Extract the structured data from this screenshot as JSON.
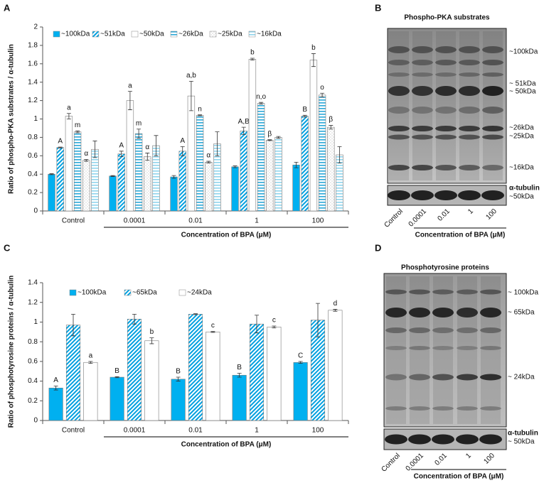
{
  "chart_data": [
    {
      "type": "bar",
      "panel_label": "A",
      "ylabel": "Ratio of phospho-PKA substrates / α-tubulin",
      "xlabel": "Concentration of BPA (μM)",
      "categories": [
        "Control",
        "0.0001",
        "0.01",
        "1",
        "100"
      ],
      "ylim": [
        0,
        2
      ],
      "yticks": [
        0,
        0.2,
        0.4,
        0.6,
        0.8,
        1,
        1.2,
        1.4,
        1.6,
        1.8,
        2
      ],
      "series": [
        {
          "name": "~100kDa",
          "color": "#00b0f0",
          "pattern": "solid",
          "values": [
            0.4,
            0.38,
            0.37,
            0.48,
            0.5
          ],
          "errors": [
            0.005,
            0.005,
            0.015,
            0.01,
            0.03
          ],
          "annotations": [
            null,
            null,
            null,
            null,
            null
          ]
        },
        {
          "name": "~51kDa",
          "color": "#00a0e0",
          "pattern": "diagonal",
          "values": [
            0.69,
            0.62,
            0.65,
            0.87,
            1.03
          ],
          "errors": [
            0.005,
            0.03,
            0.05,
            0.04,
            0.01
          ],
          "annotations": [
            "A",
            "A",
            "A",
            "A,B",
            "B"
          ]
        },
        {
          "name": "~50kDa",
          "color": "#ffffff",
          "pattern": "solid",
          "values": [
            1.03,
            1.2,
            1.25,
            1.65,
            1.64
          ],
          "errors": [
            0.03,
            0.1,
            0.16,
            0.01,
            0.07
          ],
          "annotations": [
            "a",
            "a",
            "a,b",
            "b",
            "b"
          ]
        },
        {
          "name": "~26kDa",
          "color": "#2aa8d8",
          "pattern": "horizontal",
          "values": [
            0.86,
            0.84,
            1.04,
            1.17,
            1.26
          ],
          "errors": [
            0.01,
            0.05,
            0.005,
            0.01,
            0.02
          ],
          "annotations": [
            "m",
            "m",
            "n",
            "n,o",
            "o"
          ]
        },
        {
          "name": "~25kDa",
          "color": "#ffffff",
          "pattern": "dotted",
          "values": [
            0.55,
            0.59,
            0.53,
            0.77,
            0.91
          ],
          "errors": [
            0.01,
            0.04,
            0.01,
            0.005,
            0.02
          ],
          "annotations": [
            "α",
            "α",
            "α",
            "β",
            "β"
          ]
        },
        {
          "name": "~16kDa",
          "color": "#8fd4ec",
          "pattern": "horizontal",
          "values": [
            0.67,
            0.71,
            0.73,
            0.8,
            0.61
          ],
          "errors": [
            0.09,
            0.11,
            0.13,
            0.01,
            0.09
          ],
          "annotations": [
            null,
            null,
            null,
            null,
            null
          ]
        }
      ]
    },
    {
      "type": "bar",
      "panel_label": "C",
      "ylabel": "Ratio of phosphotyrosine proteins / α-tubulin",
      "xlabel": "Concentration of BPA (μM)",
      "categories": [
        "Control",
        "0.0001",
        "0.01",
        "1",
        "100"
      ],
      "ylim": [
        0,
        1.4
      ],
      "yticks": [
        0,
        0.2,
        0.4,
        0.6,
        0.8,
        1,
        1.2,
        1.4
      ],
      "series": [
        {
          "name": "~100kDa",
          "color": "#00b0f0",
          "pattern": "solid",
          "values": [
            0.33,
            0.44,
            0.42,
            0.46,
            0.59
          ],
          "errors": [
            0.02,
            0.005,
            0.02,
            0.02,
            0.01
          ],
          "annotations": [
            "A",
            "B",
            "B",
            "B",
            "C"
          ]
        },
        {
          "name": "~65kDa",
          "color": "#00a0e0",
          "pattern": "diagonal",
          "values": [
            0.97,
            1.03,
            1.08,
            0.98,
            1.02
          ],
          "errors": [
            0.11,
            0.05,
            0.005,
            0.09,
            0.17
          ],
          "annotations": [
            null,
            null,
            null,
            null,
            null
          ]
        },
        {
          "name": "~24kDa",
          "color": "#ffffff",
          "pattern": "solid",
          "values": [
            0.59,
            0.81,
            0.9,
            0.95,
            1.12
          ],
          "errors": [
            0.01,
            0.03,
            0.005,
            0.01,
            0.01
          ],
          "annotations": [
            "a",
            "b",
            "c",
            "c",
            "d"
          ]
        }
      ]
    }
  ],
  "blots": [
    {
      "panel_label": "B",
      "title": "Phospho-PKA substrates",
      "markers": [
        "~100kDa",
        "~ 51kDa",
        "~ 50kDa",
        "~26kDa",
        "~25kDa",
        "~16kDa"
      ],
      "loading_control": "α-tubulin",
      "loading_marker": "~50kDa",
      "lanes": [
        "Control",
        "0.0001",
        "0.01",
        "1",
        "100"
      ],
      "xlabel": "Concentration of BPA (μM)"
    },
    {
      "panel_label": "D",
      "title": "Phosphotyrosine proteins",
      "markers": [
        "~ 100kDa",
        "~ 65kDa",
        "~ 24kDa"
      ],
      "loading_control": "α-tubulin",
      "loading_marker": "~ 50kDa",
      "lanes": [
        "Control",
        "0.0001",
        "0.01",
        "1",
        "100"
      ],
      "xlabel": "Concentration of BPA (μM)"
    }
  ]
}
